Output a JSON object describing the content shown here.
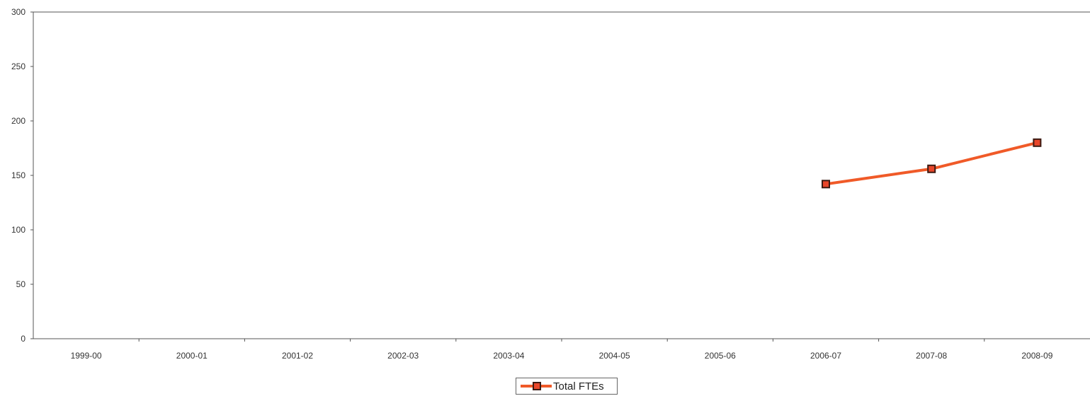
{
  "chart_data": {
    "type": "line",
    "categories": [
      "1999-00",
      "2000-01",
      "2001-02",
      "2002-03",
      "2003-04",
      "2004-05",
      "2005-06",
      "2006-07",
      "2007-08",
      "2008-09"
    ],
    "series": [
      {
        "name": "Total FTEs",
        "values": [
          null,
          null,
          null,
          null,
          null,
          null,
          null,
          142,
          156,
          180
        ],
        "color": "#f05a28",
        "marker_color": "#e8462a"
      }
    ],
    "ylim": [
      0,
      300
    ],
    "yticks": [
      "0",
      "50",
      "100",
      "150",
      "200",
      "250",
      "300"
    ],
    "legend_position": "bottom-center",
    "grid": false
  }
}
